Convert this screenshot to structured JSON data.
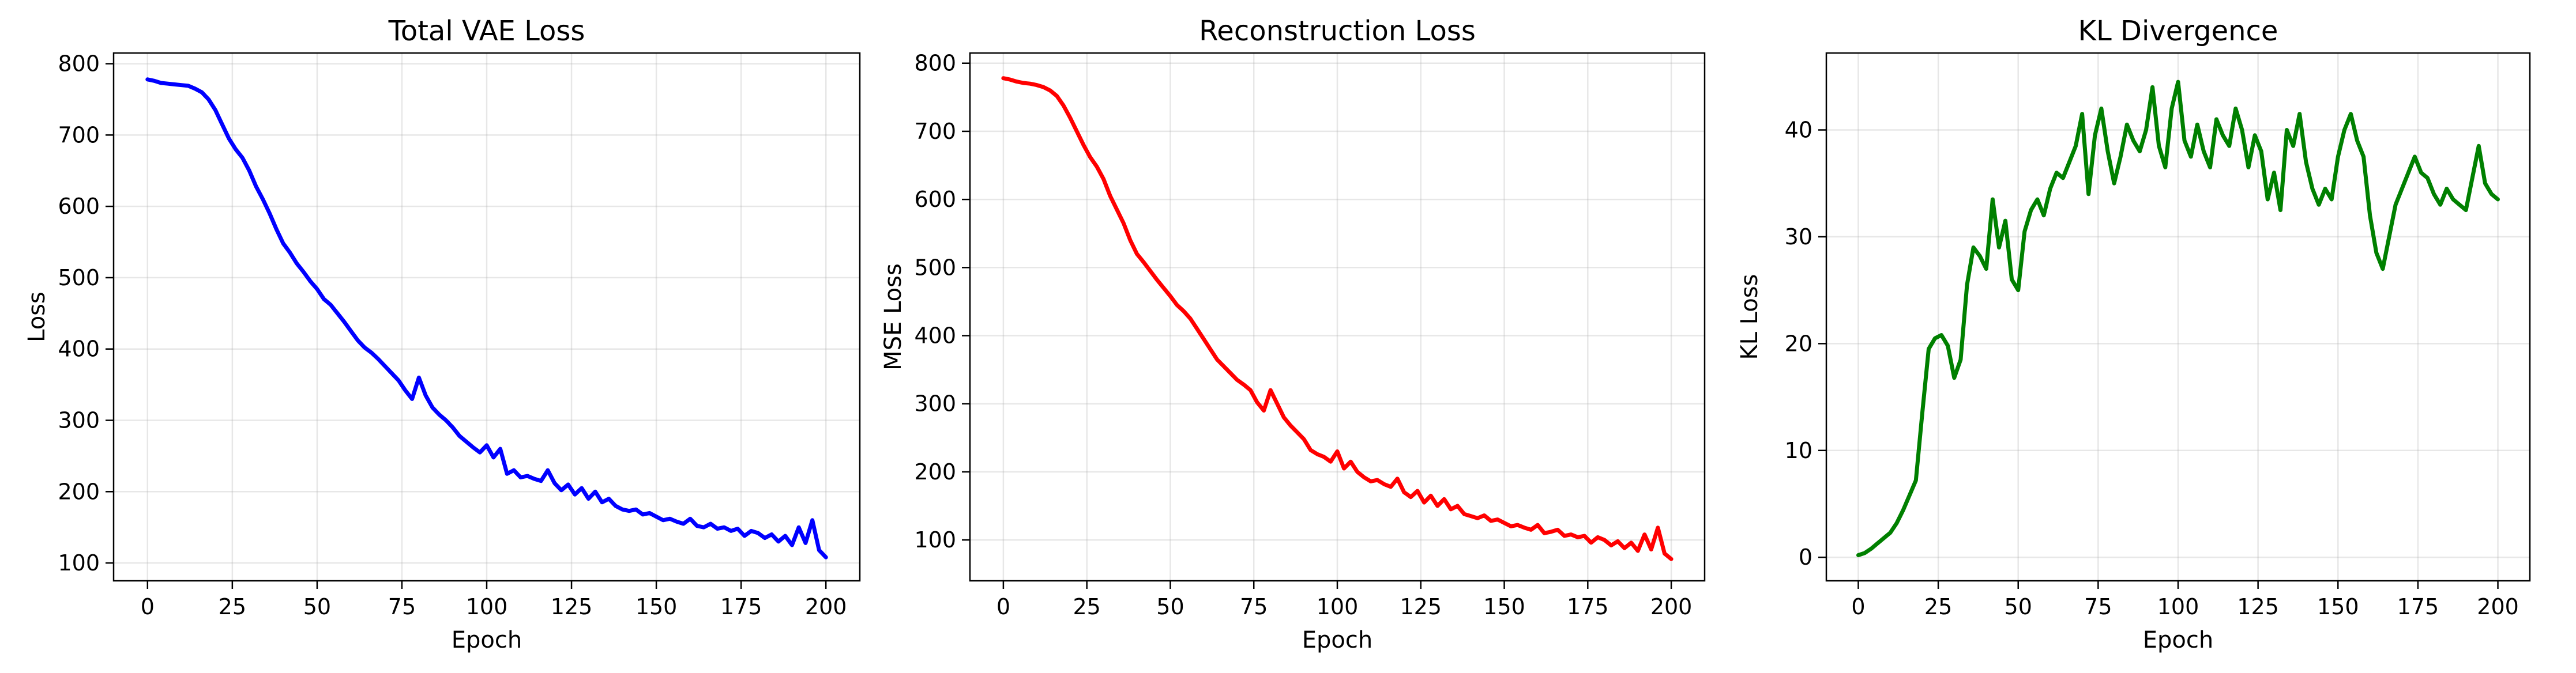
{
  "chart_data": [
    {
      "type": "line",
      "title": "Total VAE Loss",
      "xlabel": "Epoch",
      "ylabel": "Loss",
      "xlim": [
        -10,
        210
      ],
      "ylim": [
        75,
        815
      ],
      "xticks": [
        0,
        25,
        50,
        75,
        100,
        125,
        150,
        175,
        200
      ],
      "yticks": [
        100,
        200,
        300,
        400,
        500,
        600,
        700,
        800
      ],
      "grid": true,
      "series": [
        {
          "color": "#0000ff",
          "x": [
            0,
            2,
            4,
            6,
            8,
            10,
            12,
            14,
            16,
            18,
            20,
            22,
            24,
            26,
            28,
            30,
            32,
            34,
            36,
            38,
            40,
            42,
            44,
            46,
            48,
            50,
            52,
            54,
            56,
            58,
            60,
            62,
            64,
            66,
            68,
            70,
            72,
            74,
            76,
            78,
            80,
            82,
            84,
            86,
            88,
            90,
            92,
            94,
            96,
            98,
            100,
            102,
            104,
            106,
            108,
            110,
            112,
            114,
            116,
            118,
            120,
            122,
            124,
            126,
            128,
            130,
            132,
            134,
            136,
            138,
            140,
            142,
            144,
            146,
            148,
            150,
            152,
            154,
            156,
            158,
            160,
            162,
            164,
            166,
            168,
            170,
            172,
            174,
            176,
            178,
            180,
            182,
            184,
            186,
            188,
            190,
            192,
            194,
            196,
            198,
            200
          ],
          "y": [
            778,
            776,
            773,
            772,
            771,
            770,
            769,
            765,
            760,
            750,
            735,
            715,
            695,
            680,
            668,
            650,
            628,
            610,
            590,
            568,
            548,
            535,
            520,
            508,
            495,
            484,
            470,
            462,
            450,
            438,
            425,
            412,
            402,
            395,
            386,
            376,
            366,
            356,
            342,
            330,
            360,
            335,
            318,
            308,
            300,
            290,
            278,
            270,
            262,
            255,
            265,
            248,
            260,
            225,
            230,
            220,
            222,
            218,
            215,
            230,
            212,
            202,
            210,
            196,
            205,
            190,
            200,
            185,
            190,
            180,
            175,
            173,
            175,
            168,
            170,
            165,
            160,
            162,
            158,
            155,
            162,
            152,
            150,
            155,
            148,
            150,
            145,
            148,
            138,
            145,
            142,
            135,
            140,
            130,
            138,
            125,
            150,
            128,
            160,
            118,
            108
          ]
        }
      ]
    },
    {
      "type": "line",
      "title": "Reconstruction Loss",
      "xlabel": "Epoch",
      "ylabel": "MSE Loss",
      "xlim": [
        -10,
        210
      ],
      "ylim": [
        40,
        815
      ],
      "xticks": [
        0,
        25,
        50,
        75,
        100,
        125,
        150,
        175,
        200
      ],
      "yticks": [
        100,
        200,
        300,
        400,
        500,
        600,
        700,
        800
      ],
      "grid": true,
      "series": [
        {
          "color": "#ff0000",
          "x": [
            0,
            2,
            4,
            6,
            8,
            10,
            12,
            14,
            16,
            18,
            20,
            22,
            24,
            26,
            28,
            30,
            32,
            34,
            36,
            38,
            40,
            42,
            44,
            46,
            48,
            50,
            52,
            54,
            56,
            58,
            60,
            62,
            64,
            66,
            68,
            70,
            72,
            74,
            76,
            78,
            80,
            82,
            84,
            86,
            88,
            90,
            92,
            94,
            96,
            98,
            100,
            102,
            104,
            106,
            108,
            110,
            112,
            114,
            116,
            118,
            120,
            122,
            124,
            126,
            128,
            130,
            132,
            134,
            136,
            138,
            140,
            142,
            144,
            146,
            148,
            150,
            152,
            154,
            156,
            158,
            160,
            162,
            164,
            166,
            168,
            170,
            172,
            174,
            176,
            178,
            180,
            182,
            184,
            186,
            188,
            190,
            192,
            194,
            196,
            198,
            200
          ],
          "y": [
            778,
            776,
            773,
            771,
            770,
            768,
            765,
            760,
            752,
            738,
            720,
            700,
            680,
            662,
            648,
            630,
            605,
            585,
            565,
            540,
            520,
            508,
            495,
            482,
            470,
            458,
            445,
            436,
            425,
            410,
            395,
            380,
            365,
            355,
            345,
            335,
            328,
            320,
            302,
            290,
            320,
            300,
            280,
            268,
            258,
            248,
            232,
            226,
            222,
            215,
            230,
            205,
            215,
            200,
            192,
            186,
            188,
            182,
            178,
            190,
            170,
            163,
            172,
            155,
            165,
            150,
            160,
            145,
            150,
            138,
            135,
            132,
            136,
            128,
            130,
            125,
            120,
            122,
            118,
            115,
            122,
            110,
            112,
            115,
            106,
            108,
            104,
            106,
            96,
            104,
            100,
            92,
            98,
            88,
            96,
            84,
            108,
            86,
            118,
            80,
            72
          ]
        }
      ]
    },
    {
      "type": "line",
      "title": "KL Divergence",
      "xlabel": "Epoch",
      "ylabel": "KL Loss",
      "xlim": [
        -10,
        210
      ],
      "ylim": [
        -2.2,
        47.2
      ],
      "xticks": [
        0,
        25,
        50,
        75,
        100,
        125,
        150,
        175,
        200
      ],
      "yticks": [
        0,
        10,
        20,
        30,
        40
      ],
      "grid": true,
      "series": [
        {
          "color": "#008000",
          "x": [
            0,
            2,
            4,
            6,
            8,
            10,
            12,
            14,
            16,
            18,
            20,
            22,
            24,
            26,
            28,
            30,
            32,
            34,
            36,
            38,
            40,
            42,
            44,
            46,
            48,
            50,
            52,
            54,
            56,
            58,
            60,
            62,
            64,
            66,
            68,
            70,
            72,
            74,
            76,
            78,
            80,
            82,
            84,
            86,
            88,
            90,
            92,
            94,
            96,
            98,
            100,
            102,
            104,
            106,
            108,
            110,
            112,
            114,
            116,
            118,
            120,
            122,
            124,
            126,
            128,
            130,
            132,
            134,
            136,
            138,
            140,
            142,
            144,
            146,
            148,
            150,
            152,
            154,
            156,
            158,
            160,
            162,
            164,
            166,
            168,
            170,
            172,
            174,
            176,
            178,
            180,
            182,
            184,
            186,
            188,
            190,
            192,
            194,
            196,
            198,
            200
          ],
          "y": [
            0.2,
            0.4,
            0.8,
            1.3,
            1.8,
            2.3,
            3.2,
            4.4,
            5.8,
            7.2,
            13.5,
            19.5,
            20.5,
            20.8,
            19.8,
            16.8,
            18.5,
            25.5,
            29.0,
            28.2,
            27.0,
            33.5,
            29.0,
            31.5,
            26.0,
            25.0,
            30.5,
            32.5,
            33.5,
            32.0,
            34.5,
            36.0,
            35.5,
            37.0,
            38.5,
            41.5,
            34.0,
            39.5,
            42.0,
            38.0,
            35.0,
            37.5,
            40.5,
            39.0,
            38.0,
            40.0,
            44.0,
            38.5,
            36.5,
            42.0,
            44.5,
            39.0,
            37.5,
            40.5,
            38.0,
            36.5,
            41.0,
            39.5,
            38.5,
            42.0,
            40.0,
            36.5,
            39.5,
            38.0,
            33.5,
            36.0,
            32.5,
            40.0,
            38.5,
            41.5,
            37.0,
            34.5,
            33.0,
            34.5,
            33.5,
            37.5,
            40.0,
            41.5,
            39.0,
            37.5,
            32.0,
            28.5,
            27.0,
            30.0,
            33.0,
            34.5,
            36.0,
            37.5,
            36.0,
            35.5,
            34.0,
            33.0,
            34.5,
            33.5,
            33.0,
            32.5,
            35.5,
            38.5,
            35.0,
            34.0,
            33.5
          ]
        }
      ]
    }
  ]
}
